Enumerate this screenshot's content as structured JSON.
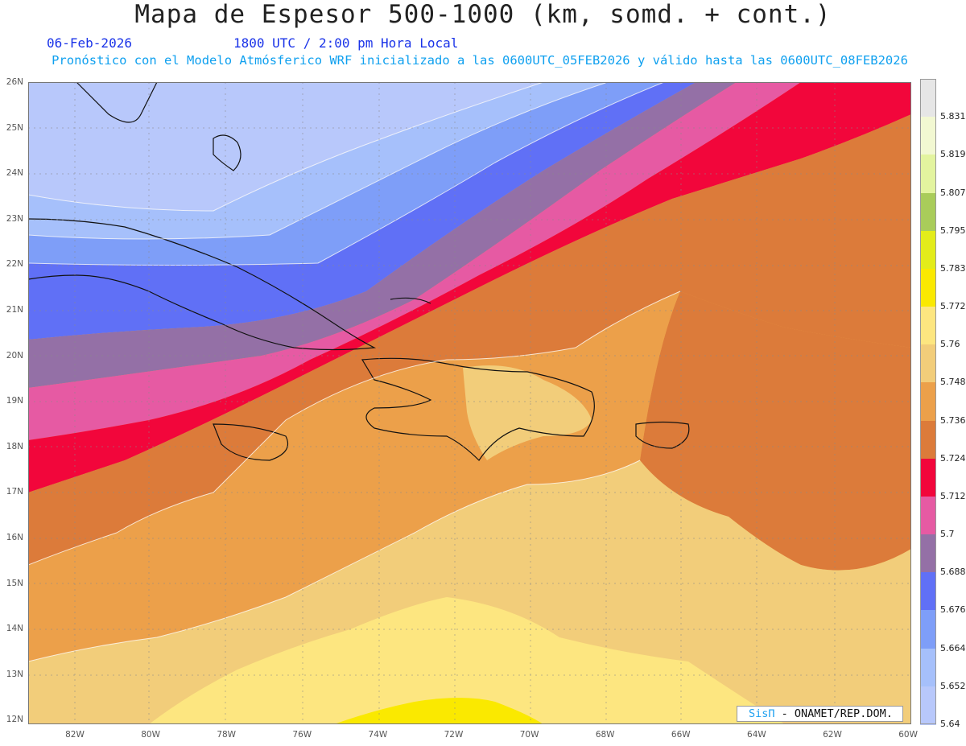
{
  "title": "Mapa de Espesor 500-1000 (km, somd. + cont.)",
  "date": "06-Feb-2026",
  "time": "1800 UTC / 2:00 pm Hora Local",
  "subtitle": "Pronóstico con el Modelo Atmósferico WRF inicializado a las 0600UTC_05FEB2026 y válido hasta las  0600UTC_08FEB2026",
  "axes": {
    "lat_labels": [
      "26N",
      "25N",
      "24N",
      "23N",
      "22N",
      "21N",
      "20N",
      "19N",
      "18N",
      "17N",
      "16N",
      "15N",
      "14N",
      "13N",
      "12N"
    ],
    "lon_labels": [
      "82W",
      "80W",
      "78W",
      "76W",
      "74W",
      "72W",
      "70W",
      "68W",
      "66W",
      "64W",
      "62W",
      "60W"
    ]
  },
  "colorbar": {
    "labels": [
      "5.831",
      "5.819",
      "5.807",
      "5.795",
      "5.783",
      "5.772",
      "5.76",
      "5.748",
      "5.736",
      "5.724",
      "5.712",
      "5.7",
      "5.688",
      "5.676",
      "5.664",
      "5.652",
      "5.64"
    ],
    "colors_top_to_bottom": [
      "#e6e6e6",
      "#f2f8d2",
      "#e3f49f",
      "#a9cc5a",
      "#e3ec1a",
      "#fae900",
      "#fde680",
      "#f2cd7a",
      "#eca04a",
      "#dc7b3a",
      "#f2063b",
      "#e65aa3",
      "#9470a6",
      "#6070f6",
      "#7e9ef8",
      "#a6c0fb",
      "#b8c8fb"
    ]
  },
  "credit": {
    "logo": "SisΠ",
    "text": "- ONAMET/REP.DOM."
  },
  "colors": {
    "title": "#222222",
    "date": "#1a33e8",
    "subtitle": "#0fa0ef"
  }
}
